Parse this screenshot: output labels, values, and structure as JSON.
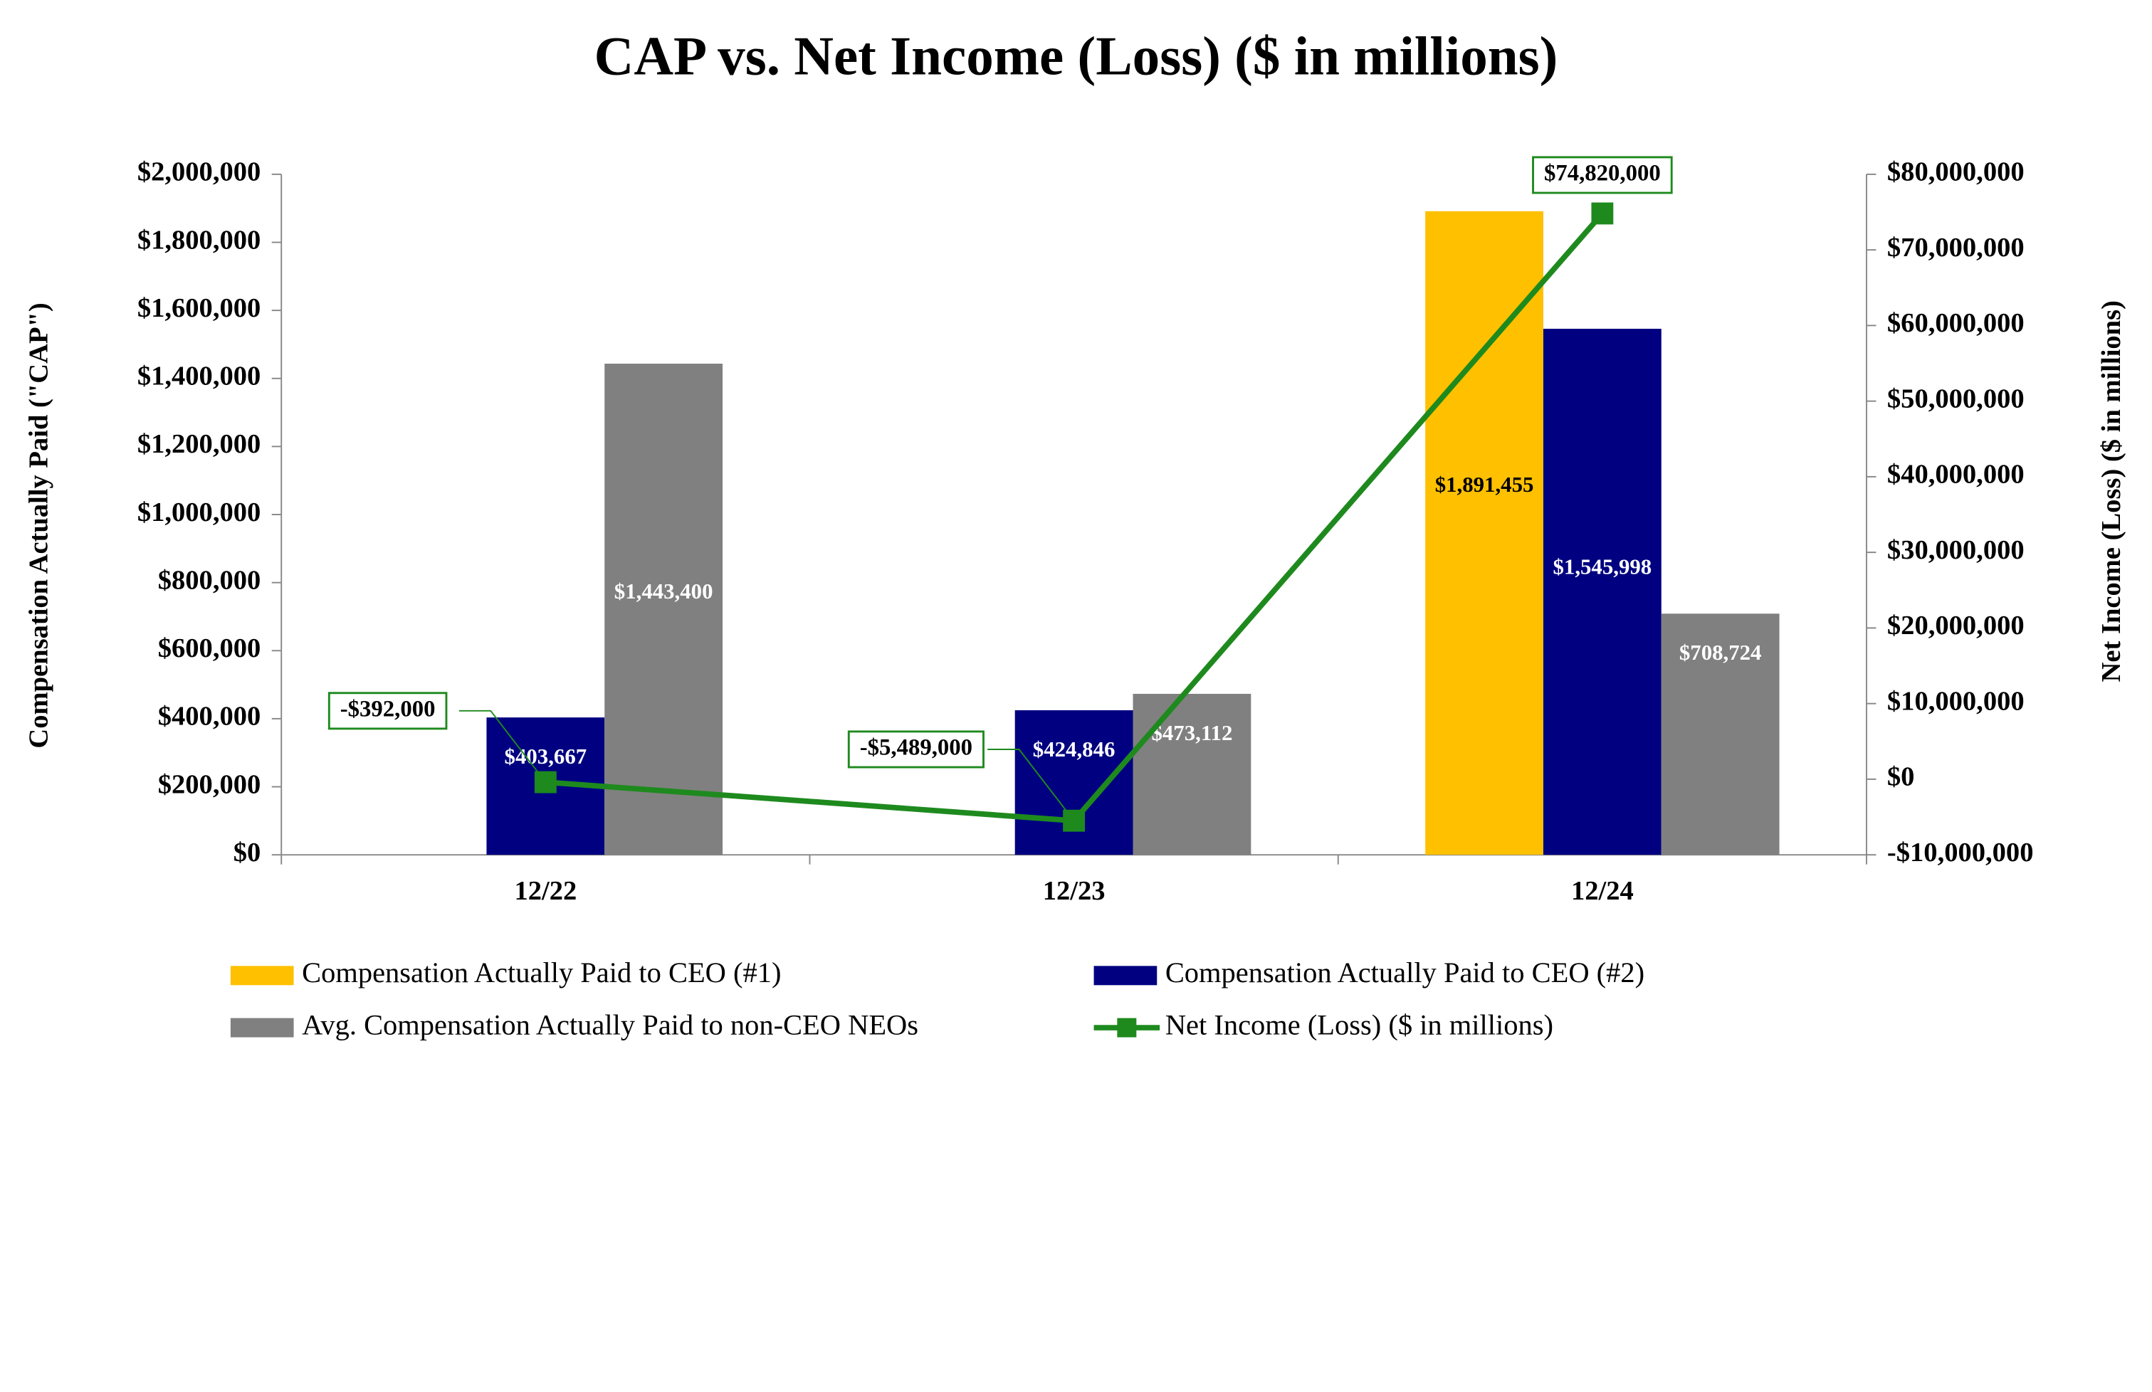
{
  "chart_data": {
    "type": "bar",
    "title": "CAP vs. Net Income (Loss) ($ in millions)",
    "y_label": "Compensation Actually Paid (\"CAP\")",
    "y2_label": "Net Income (Loss) ($ in millions)",
    "categories": [
      "12/22",
      "12/23",
      "12/24"
    ],
    "series": [
      {
        "name": "Compensation Actually Paid to CEO (#1)",
        "type": "bar",
        "color": "#FFC000",
        "values": [
          null,
          null,
          1891455
        ],
        "value_labels": [
          null,
          null,
          "$1,891,455"
        ]
      },
      {
        "name": "Compensation Actually Paid to CEO (#2)",
        "type": "bar",
        "color": "#000080",
        "values": [
          403667,
          424846,
          1545998
        ],
        "value_labels": [
          "$403,667",
          "$424,846",
          "$1,545,998"
        ]
      },
      {
        "name": "Avg. Compensation Actually Paid to non-CEO NEOs",
        "type": "bar",
        "color": "#808080",
        "values": [
          1443400,
          473112,
          708724
        ],
        "value_labels": [
          "$1,443,400",
          "$473,112",
          "$708,724"
        ]
      },
      {
        "name": "Net Income (Loss) ($ in millions)",
        "type": "line",
        "axis": "y2",
        "color": "#1E8A1E",
        "values": [
          -392000,
          -5489000,
          74820000
        ],
        "value_labels": [
          "-$392,000",
          "-$5,489,000",
          "$74,820,000"
        ]
      }
    ],
    "ylim": [
      0,
      2000000
    ],
    "yticks": [
      {
        "value": 0,
        "label": "$0"
      },
      {
        "value": 200000,
        "label": "$200,000"
      },
      {
        "value": 400000,
        "label": "$400,000"
      },
      {
        "value": 600000,
        "label": "$600,000"
      },
      {
        "value": 800000,
        "label": "$800,000"
      },
      {
        "value": 1000000,
        "label": "$1,000,000"
      },
      {
        "value": 1200000,
        "label": "$1,200,000"
      },
      {
        "value": 1400000,
        "label": "$1,400,000"
      },
      {
        "value": 1600000,
        "label": "$1,600,000"
      },
      {
        "value": 1800000,
        "label": "$1,800,000"
      },
      {
        "value": 2000000,
        "label": "$2,000,000"
      }
    ],
    "y2lim": [
      -10000000,
      80000000
    ],
    "y2ticks": [
      {
        "value": -10000000,
        "label": "-$10,000,000"
      },
      {
        "value": 0,
        "label": "$0"
      },
      {
        "value": 10000000,
        "label": "$10,000,000"
      },
      {
        "value": 20000000,
        "label": "$20,000,000"
      },
      {
        "value": 30000000,
        "label": "$30,000,000"
      },
      {
        "value": 40000000,
        "label": "$40,000,000"
      },
      {
        "value": 50000000,
        "label": "$50,000,000"
      },
      {
        "value": 60000000,
        "label": "$60,000,000"
      },
      {
        "value": 70000000,
        "label": "$70,000,000"
      },
      {
        "value": 80000000,
        "label": "$80,000,000"
      }
    ],
    "legend": "bottom"
  }
}
